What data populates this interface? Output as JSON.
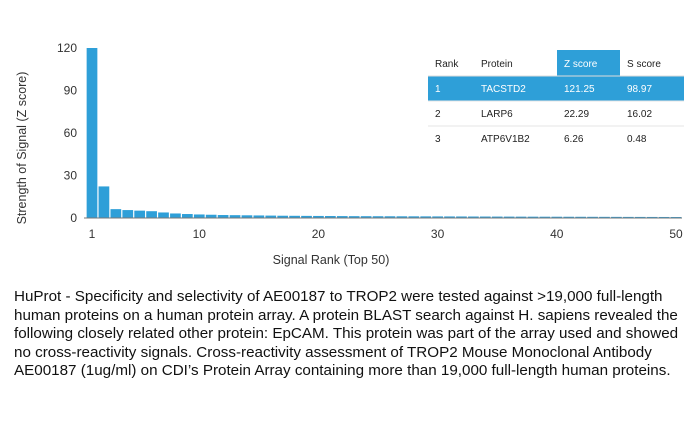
{
  "chart_data": {
    "type": "bar",
    "title": "",
    "xlabel": "Signal Rank (Top 50)",
    "ylabel": "Strength of Signal (Z score)",
    "ylim": [
      0,
      120
    ],
    "xlim": [
      1,
      50
    ],
    "yticks": [
      "0",
      "30",
      "60",
      "90",
      "120"
    ],
    "xticks": [
      "1",
      "10",
      "20",
      "30",
      "40",
      "50"
    ],
    "bar_color": "#2e9fd8",
    "grid": false,
    "series": [
      {
        "values": [
          121.25,
          22.29,
          6.26,
          5.6,
          5.2,
          4.8,
          3.9,
          3.2,
          2.8,
          2.5,
          2.3,
          2.1,
          2.0,
          1.9,
          1.8,
          1.7,
          1.6,
          1.55,
          1.5,
          1.45,
          1.4,
          1.35,
          1.3,
          1.28,
          1.25,
          1.22,
          1.2,
          1.18,
          1.15,
          1.12,
          1.1,
          1.08,
          1.05,
          1.03,
          1.0,
          0.98,
          0.96,
          0.94,
          0.92,
          0.9,
          0.88,
          0.86,
          0.84,
          0.82,
          0.8,
          0.78,
          0.76,
          0.74,
          0.72,
          0.7
        ]
      }
    ],
    "table": {
      "headers": [
        "Rank",
        "Protein",
        "Z score",
        "S score"
      ],
      "rows": [
        [
          "1",
          "TACSTD2",
          "121.25",
          "98.97"
        ],
        [
          "2",
          "LARP6",
          "22.29",
          "16.02"
        ],
        [
          "3",
          "ATP6V1B2",
          "6.26",
          "0.48"
        ]
      ],
      "highlight_color": "#2e9fd8"
    }
  },
  "caption": "HuProt  -  Specificity and selectivity of AE00187 to TROP2 were tested against >19,000 full-length human proteins on a human protein array. A protein BLAST search against H. sapiens revealed the following closely related other protein: EpCAM. This protein was part of the array used and showed no cross-reactivity signals. Cross-reactivity assessment of TROP2 Mouse Monoclonal Antibody AE00187 (1ug/ml) on CDI’s Protein Array containing more than 19,000 full-length human proteins."
}
